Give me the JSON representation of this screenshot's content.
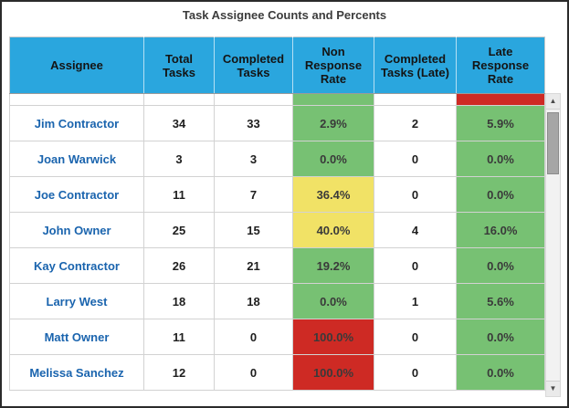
{
  "title": "Task Assignee Counts and Percents",
  "chart_data": {
    "type": "table",
    "title": "Task Assignee Counts and Percents",
    "columns": [
      "Assignee",
      "Total Tasks",
      "Completed Tasks",
      "Non Response Rate",
      "Completed Tasks (Late)",
      "Late Response Rate"
    ],
    "rows": [
      [
        "Jim Contractor",
        "34",
        "33",
        "2.9%",
        "2",
        "5.9%"
      ],
      [
        "Joan Warwick",
        "3",
        "3",
        "0.0%",
        "0",
        "0.0%"
      ],
      [
        "Joe Contractor",
        "11",
        "7",
        "36.4%",
        "0",
        "0.0%"
      ],
      [
        "John Owner",
        "25",
        "15",
        "40.0%",
        "4",
        "16.0%"
      ],
      [
        "Kay Contractor",
        "26",
        "21",
        "19.2%",
        "0",
        "0.0%"
      ],
      [
        "Larry West",
        "18",
        "18",
        "0.0%",
        "1",
        "5.6%"
      ],
      [
        "Matt Owner",
        "11",
        "0",
        "100.0%",
        "0",
        "0.0%"
      ],
      [
        "Melissa Sanchez",
        "12",
        "0",
        "100.0%",
        "0",
        "0.0%"
      ]
    ],
    "cell_colors": {
      "non_response": [
        "green",
        "green",
        "yellow",
        "yellow",
        "green",
        "green",
        "red",
        "red"
      ],
      "late_response": [
        "green",
        "green",
        "green",
        "green",
        "green",
        "green",
        "green",
        "green"
      ]
    },
    "partial_row_top": {
      "non_response": "green",
      "late_response": "red"
    }
  },
  "colors": {
    "header_bg": "#2aa6de",
    "green": "#77c173",
    "yellow": "#f1e266",
    "red": "#ce2a24",
    "assignee_text": "#1a64ae"
  },
  "scrollbar": {
    "up_icon": "▲",
    "down_icon": "▼"
  }
}
